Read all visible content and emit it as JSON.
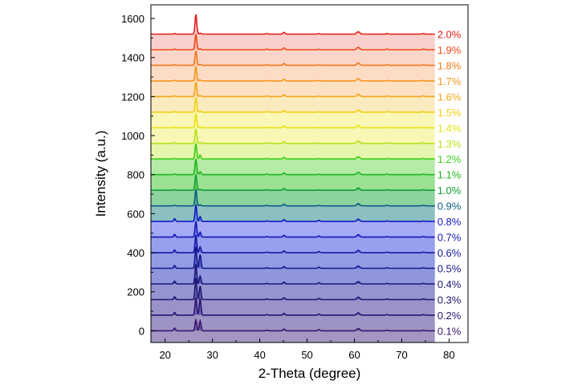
{
  "chart_data": {
    "type": "line",
    "title": "",
    "xlabel": "2-Theta (degree)",
    "ylabel": "Intensity (a.u.)",
    "xlim": [
      17,
      84
    ],
    "ylim": [
      -60,
      1670
    ],
    "x_ticks": [
      20,
      30,
      40,
      50,
      60,
      70,
      80
    ],
    "y_ticks": [
      0,
      200,
      400,
      600,
      800,
      1000,
      1200,
      1400,
      1600
    ],
    "x_range_data": [
      17,
      77
    ],
    "peaks_2theta": [
      22.0,
      26.5,
      27.4,
      41.5,
      45.1,
      52.5,
      60.8,
      66.9,
      74.6
    ],
    "series": [
      {
        "name": "0.1%",
        "label": "0.1%",
        "baseline": 0,
        "color": "#3a1670",
        "fill": "#5a3e90",
        "main_peak_height": 55,
        "peak_27_4": 50
      },
      {
        "name": "0.2%",
        "label": "0.2%",
        "baseline": 80,
        "color": "#2a1470",
        "fill": "#4c3a94",
        "main_peak_height": 90,
        "peak_27_4": 85
      },
      {
        "name": "0.3%",
        "label": "0.3%",
        "baseline": 160,
        "color": "#221670",
        "fill": "#453a9e",
        "main_peak_height": 110,
        "peak_27_4": 70
      },
      {
        "name": "0.4%",
        "label": "0.4%",
        "baseline": 240,
        "color": "#1a167a",
        "fill": "#3d3cac",
        "main_peak_height": 100,
        "peak_27_4": 40
      },
      {
        "name": "0.5%",
        "label": "0.5%",
        "baseline": 320,
        "color": "#14188c",
        "fill": "#3540c0",
        "main_peak_height": 110,
        "peak_27_4": 70
      },
      {
        "name": "0.6%",
        "label": "0.6%",
        "baseline": 400,
        "color": "#1418a0",
        "fill": "#3a48d0",
        "main_peak_height": 90,
        "peak_27_4": 30
      },
      {
        "name": "0.7%",
        "label": "0.7%",
        "baseline": 480,
        "color": "#1418b4",
        "fill": "#4450e0",
        "main_peak_height": 80,
        "peak_27_4": 25
      },
      {
        "name": "0.8%",
        "label": "0.8%",
        "baseline": 560,
        "color": "#1418c8",
        "fill": "#5a64ee",
        "main_peak_height": 85,
        "peak_27_4": 25
      },
      {
        "name": "0.9%",
        "label": "0.9%",
        "baseline": 640,
        "color": "#0e5e86",
        "fill": "#2e8a8a",
        "main_peak_height": 85,
        "peak_27_4": 5
      },
      {
        "name": "1.0%",
        "label": "1.0%",
        "baseline": 720,
        "color": "#12a036",
        "fill": "#2eae4e",
        "main_peak_height": 80,
        "peak_27_4": 5
      },
      {
        "name": "1.1%",
        "label": "1.1%",
        "baseline": 800,
        "color": "#1fb81f",
        "fill": "#48c838",
        "main_peak_height": 80,
        "peak_27_4": 15
      },
      {
        "name": "1.2%",
        "label": "1.2%",
        "baseline": 880,
        "color": "#3ecf1a",
        "fill": "#78d85e",
        "main_peak_height": 80,
        "peak_27_4": 20
      },
      {
        "name": "1.3%",
        "label": "1.3%",
        "baseline": 960,
        "color": "#b6e41a",
        "fill": "#d2ef6a",
        "main_peak_height": 75,
        "peak_27_4": 5
      },
      {
        "name": "1.4%",
        "label": "1.4%",
        "baseline": 1040,
        "color": "#e6e412",
        "fill": "#f2f07a",
        "main_peak_height": 75,
        "peak_27_4": 5
      },
      {
        "name": "1.5%",
        "label": "1.5%",
        "baseline": 1120,
        "color": "#f0d012",
        "fill": "#f7f07a",
        "main_peak_height": 75,
        "peak_27_4": 5
      },
      {
        "name": "1.6%",
        "label": "1.6%",
        "baseline": 1200,
        "color": "#f2a61a",
        "fill": "#fad88a",
        "main_peak_height": 75,
        "peak_27_4": 5
      },
      {
        "name": "1.7%",
        "label": "1.7%",
        "baseline": 1280,
        "color": "#f4961c",
        "fill": "#fcc890",
        "main_peak_height": 75,
        "peak_27_4": 5
      },
      {
        "name": "1.8%",
        "label": "1.8%",
        "baseline": 1360,
        "color": "#f27a1c",
        "fill": "#fbc095",
        "main_peak_height": 75,
        "peak_27_4": 5
      },
      {
        "name": "1.9%",
        "label": "1.9%",
        "baseline": 1440,
        "color": "#ee4c1a",
        "fill": "#f8b29c",
        "main_peak_height": 80,
        "peak_27_4": 5
      },
      {
        "name": "2.0%",
        "label": "2.0%",
        "baseline": 1520,
        "color": "#e41e1a",
        "fill": "#f6a8a0",
        "main_peak_height": 100,
        "peak_27_4": 5
      }
    ]
  }
}
